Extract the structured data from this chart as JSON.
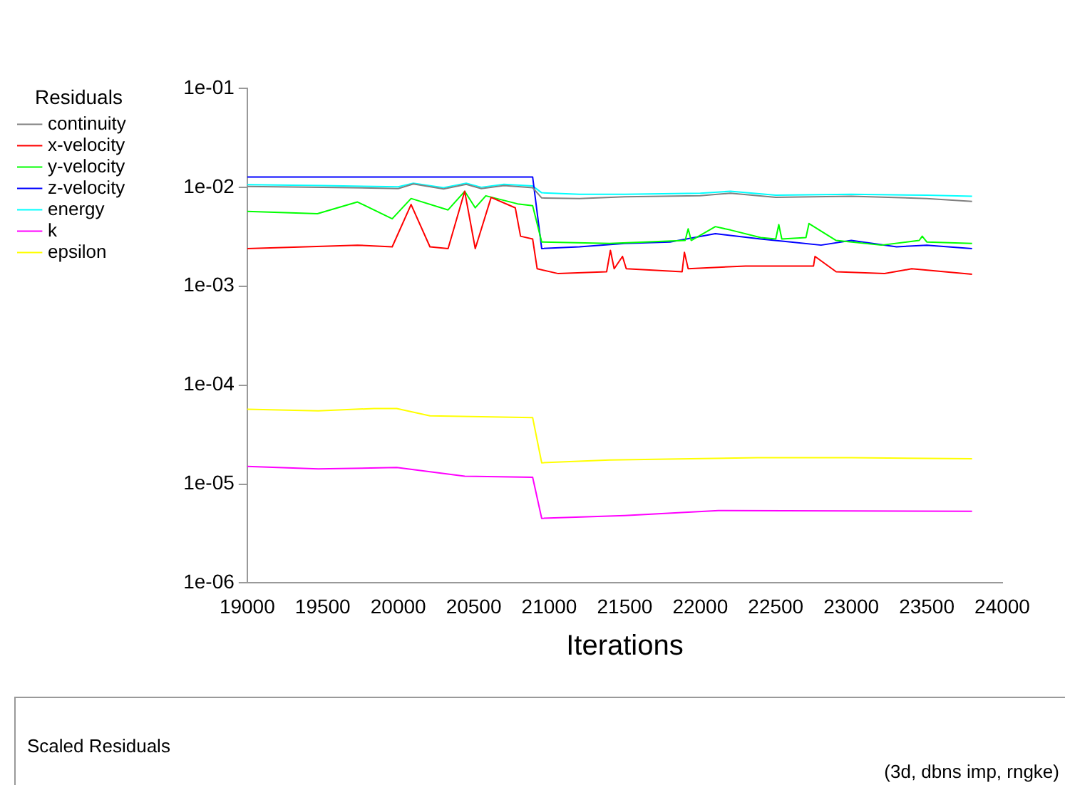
{
  "chart_data": {
    "type": "line",
    "xlabel": "Iterations",
    "legend_title": "Residuals",
    "legend": "top left",
    "log": "y",
    "grid": false,
    "marker": "none",
    "line_style": "solid",
    "xlim": [
      19000,
      24000
    ],
    "xticks": [
      19000,
      19500,
      20000,
      20500,
      21000,
      21500,
      22000,
      22500,
      23000,
      23500,
      24000
    ],
    "ylim": [
      1e-06,
      0.1
    ],
    "yticks": [
      {
        "value": 1e-06,
        "label": "1e-06"
      },
      {
        "value": 1e-05,
        "label": "1e-05"
      },
      {
        "value": 0.0001,
        "label": "1e-04"
      },
      {
        "value": 0.001,
        "label": "1e-03"
      },
      {
        "value": 0.01,
        "label": "1e-02"
      },
      {
        "value": 0.1,
        "label": "1e-01"
      }
    ],
    "series": [
      {
        "name": "continuity",
        "color": "#808080",
        "x": [
          19000,
          19500,
          20000,
          20100,
          20300,
          20450,
          20550,
          20700,
          20890,
          20950,
          21200,
          21500,
          22000,
          22200,
          22500,
          23000,
          23500,
          23800
        ],
        "values": [
          0.0102,
          0.01,
          0.0097,
          0.0108,
          0.0096,
          0.0107,
          0.0097,
          0.0104,
          0.0099,
          0.0078,
          0.0077,
          0.008,
          0.0082,
          0.0087,
          0.0079,
          0.0081,
          0.0077,
          0.0072
        ]
      },
      {
        "name": "x-velocity",
        "color": "#ff0000",
        "x": [
          19000,
          19730,
          19960,
          20085,
          20210,
          20330,
          20440,
          20510,
          20615,
          20775,
          20810,
          20890,
          20920,
          21060,
          21380,
          21405,
          21430,
          21485,
          21510,
          21880,
          21895,
          21920,
          22300,
          22600,
          22750,
          22760,
          22900,
          23220,
          23400,
          23800
        ],
        "values": [
          0.0024,
          0.0026,
          0.0025,
          0.0067,
          0.0025,
          0.0024,
          0.0091,
          0.0024,
          0.0079,
          0.0062,
          0.0032,
          0.003,
          0.0015,
          0.00134,
          0.0014,
          0.0023,
          0.0015,
          0.002,
          0.0015,
          0.0014,
          0.0022,
          0.0015,
          0.0016,
          0.0016,
          0.0016,
          0.002,
          0.0014,
          0.00134,
          0.0015,
          0.00132
        ]
      },
      {
        "name": "y-velocity",
        "color": "#00ff00",
        "x": [
          19000,
          19465,
          19730,
          19960,
          20085,
          20330,
          20440,
          20510,
          20580,
          20790,
          20890,
          20950,
          21400,
          21900,
          21920,
          21940,
          22100,
          22200,
          22400,
          22500,
          22520,
          22540,
          22700,
          22720,
          22900,
          23200,
          23450,
          23470,
          23500,
          23800
        ],
        "values": [
          0.0057,
          0.0054,
          0.0071,
          0.0048,
          0.0077,
          0.0059,
          0.0091,
          0.0062,
          0.0082,
          0.0068,
          0.0065,
          0.0028,
          0.0027,
          0.0029,
          0.0038,
          0.0029,
          0.004,
          0.0037,
          0.0031,
          0.003,
          0.0042,
          0.003,
          0.0031,
          0.0043,
          0.0029,
          0.0026,
          0.0029,
          0.0032,
          0.0028,
          0.0027
        ]
      },
      {
        "name": "z-velocity",
        "color": "#0000ff",
        "x": [
          19000,
          20890,
          20950,
          21200,
          21500,
          21800,
          22100,
          22400,
          22600,
          22800,
          23000,
          23300,
          23500,
          23800
        ],
        "values": [
          0.0127,
          0.0127,
          0.0024,
          0.0025,
          0.0027,
          0.0028,
          0.0034,
          0.003,
          0.0028,
          0.0026,
          0.0029,
          0.0025,
          0.0026,
          0.0024
        ]
      },
      {
        "name": "energy",
        "color": "#00ffff",
        "x": [
          19000,
          19500,
          20000,
          20100,
          20300,
          20450,
          20550,
          20700,
          20890,
          20950,
          21200,
          21500,
          22000,
          22200,
          22500,
          23000,
          23500,
          23800
        ],
        "values": [
          0.0106,
          0.0104,
          0.0101,
          0.011,
          0.0099,
          0.011,
          0.01,
          0.0107,
          0.0103,
          0.0088,
          0.0085,
          0.0085,
          0.0087,
          0.0091,
          0.0083,
          0.0085,
          0.0083,
          0.0081
        ]
      },
      {
        "name": "k",
        "color": "#ff00ff",
        "x": [
          19000,
          19470,
          19990,
          20440,
          20890,
          20950,
          21500,
          22120,
          23800
        ],
        "values": [
          1.51e-05,
          1.42e-05,
          1.47e-05,
          1.2e-05,
          1.17e-05,
          4.5e-06,
          4.8e-06,
          5.4e-06,
          5.3e-06
        ]
      },
      {
        "name": "epsilon",
        "color": "#ffff00",
        "x": [
          19000,
          19470,
          19840,
          19990,
          20210,
          20890,
          20950,
          21400,
          22380,
          23000,
          23800
        ],
        "values": [
          5.7e-05,
          5.5e-05,
          5.8e-05,
          5.8e-05,
          4.9e-05,
          4.7e-05,
          1.64e-05,
          1.75e-05,
          1.85e-05,
          1.85e-05,
          1.8e-05
        ]
      }
    ],
    "annotations": [
      "Scaled Residuals",
      "(3d, dbns imp, rngke)"
    ]
  }
}
